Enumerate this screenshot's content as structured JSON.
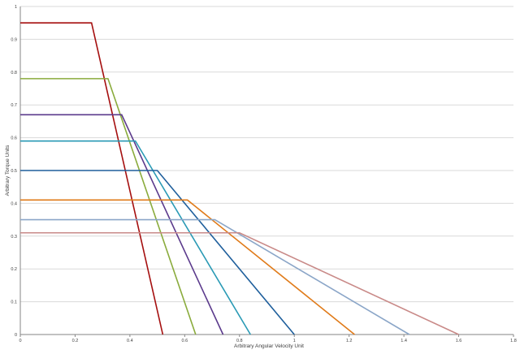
{
  "chart_data": {
    "type": "line",
    "title": "",
    "xlabel": "Arbitrary Angular Velocity Unit",
    "ylabel": "Arbitrary Torque Units",
    "xlim": [
      0,
      1.8
    ],
    "ylim": [
      0,
      1
    ],
    "xticks": [
      "0",
      "0.2",
      "0.4",
      "0.6",
      "0.8",
      "1",
      "1.2",
      "1.4",
      "1.6",
      "1.8"
    ],
    "yticks": [
      "0",
      "0.1",
      "0.2",
      "0.3",
      "0.4",
      "0.5",
      "0.6",
      "0.7",
      "0.8",
      "0.9",
      "1"
    ],
    "grid": true,
    "legend": "none",
    "series": [
      {
        "color": "#a50f0f",
        "x": [
          0,
          0.26,
          0.52
        ],
        "y": [
          0.95,
          0.95,
          0
        ]
      },
      {
        "color": "#8aab3c",
        "x": [
          0,
          0.32,
          0.64
        ],
        "y": [
          0.78,
          0.78,
          0
        ]
      },
      {
        "color": "#5b3a8c",
        "x": [
          0,
          0.37,
          0.74
        ],
        "y": [
          0.67,
          0.67,
          0
        ]
      },
      {
        "color": "#2a9ab5",
        "x": [
          0,
          0.42,
          0.84
        ],
        "y": [
          0.59,
          0.59,
          0
        ]
      },
      {
        "color": "#1f5f9c",
        "x": [
          0,
          0.5,
          1.0
        ],
        "y": [
          0.5,
          0.5,
          0
        ]
      },
      {
        "color": "#e07b1a",
        "x": [
          0,
          0.61,
          1.22
        ],
        "y": [
          0.41,
          0.41,
          0
        ]
      },
      {
        "color": "#8ba6c8",
        "x": [
          0,
          0.71,
          1.42
        ],
        "y": [
          0.35,
          0.35,
          0
        ]
      },
      {
        "color": "#c98a88",
        "x": [
          0,
          0.8,
          1.6
        ],
        "y": [
          0.31,
          0.31,
          0
        ]
      }
    ]
  }
}
